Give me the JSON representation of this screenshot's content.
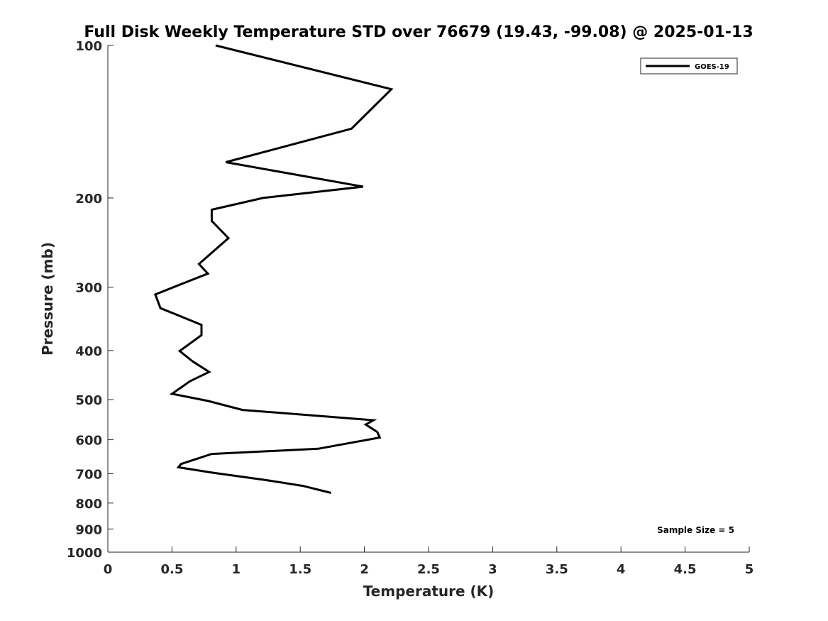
{
  "chart_data": {
    "type": "line",
    "title": "Full Disk Weekly Temperature STD over 76679 (19.43, -99.08) @ 2025-01-13",
    "xlabel": "Temperature (K)",
    "ylabel": "Pressure (mb)",
    "xlim": [
      0,
      5
    ],
    "ylim": [
      100,
      1000
    ],
    "yscale": "log",
    "y_inverted": true,
    "x_ticks": [
      0,
      0.5,
      1,
      1.5,
      2,
      2.5,
      3,
      3.5,
      4,
      4.5,
      5
    ],
    "x_tick_labels": [
      "0",
      "0.5",
      "1",
      "1.5",
      "2",
      "2.5",
      "3",
      "3.5",
      "4",
      "4.5",
      "5"
    ],
    "y_ticks": [
      100,
      200,
      300,
      400,
      500,
      600,
      700,
      800,
      900,
      1000
    ],
    "y_tick_labels": [
      "100",
      "200",
      "300",
      "400",
      "500",
      "600",
      "700",
      "800",
      "900",
      "1000"
    ],
    "grid": false,
    "legend_position": "top-right",
    "series": [
      {
        "name": "GOES-19",
        "color": "#000000",
        "x": [
          0.84,
          2.21,
          1.9,
          0.92,
          1.99,
          1.21,
          0.81,
          0.81,
          0.94,
          0.71,
          0.78,
          0.37,
          0.41,
          0.73,
          0.73,
          0.56,
          0.66,
          0.79,
          0.64,
          0.5,
          0.78,
          1.05,
          2.07,
          2.01,
          2.1,
          2.12,
          1.64,
          0.81,
          0.57,
          0.55,
          0.82,
          1.22,
          1.52,
          1.74
        ],
        "y": [
          100,
          122,
          146,
          170,
          190,
          200,
          211,
          222,
          240,
          270,
          282,
          310,
          330,
          356,
          373,
          401,
          420,
          441,
          460,
          487,
          503,
          524,
          549,
          560,
          579,
          594,
          625,
          640,
          670,
          680,
          697,
          720,
          740,
          764
        ]
      }
    ],
    "annotations": [
      "Sample Size = 5"
    ]
  }
}
